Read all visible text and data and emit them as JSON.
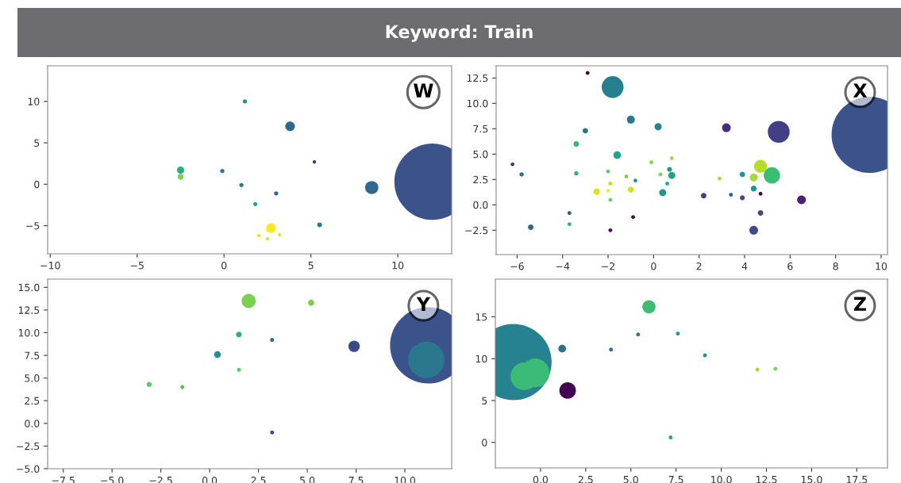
{
  "chart_data": [
    {
      "type": "bubble",
      "title": "Keyword: Train",
      "annotations": [
        "W"
      ],
      "xlim": [
        -10.15,
        13.1
      ],
      "ylim": [
        -8.4,
        14.3
      ],
      "xticks": [
        -10,
        -5,
        0,
        5,
        10
      ],
      "yticks": [
        -5,
        0,
        5,
        10
      ],
      "x": [
        12.0,
        1.2,
        3.8,
        5.2,
        -2.5,
        -2.5,
        -0.1,
        1.0,
        3.0,
        1.8,
        2.7,
        2.0,
        2.5,
        3.2,
        5.5,
        8.5
      ],
      "values": [
        0.3,
        10.0,
        7.0,
        2.7,
        1.7,
        0.9,
        1.6,
        -0.1,
        -1.1,
        -2.4,
        -5.3,
        -6.2,
        -6.6,
        -6.1,
        -4.9,
        -0.4
      ],
      "sizes": [
        1,
        0.003,
        0.016,
        0.002,
        0.009,
        0.006,
        0.003,
        0.003,
        0.003,
        0.003,
        0.016,
        0.002,
        0.002,
        0.002,
        0.004,
        0.03
      ],
      "colors": [
        "#3b528b",
        "#21918c",
        "#31688e",
        "#472d7b",
        "#2ab07f",
        "#7ad151",
        "#2c728e",
        "#2a788e",
        "#30698e",
        "#22a884",
        "#fde725",
        "#e8e419",
        "#dde318",
        "#e2e418",
        "#2a788e",
        "#31688e"
      ]
    },
    {
      "type": "bubble",
      "annotations": [
        "X"
      ],
      "xlim": [
        -6.92,
        10.28
      ],
      "ylim": [
        -4.9,
        13.7
      ],
      "xticks": [
        -6,
        -4,
        -2,
        0,
        2,
        4,
        6,
        8,
        10
      ],
      "yticks": [
        {
          "value": -2.5,
          "label": "−2.5"
        },
        {
          "value": 0,
          "label": "0.0"
        },
        {
          "value": 2.5,
          "label": "2.5"
        },
        {
          "value": 5,
          "label": "5.0"
        },
        {
          "value": 7.5,
          "label": "7.5"
        },
        {
          "value": 10,
          "label": "10.0"
        },
        {
          "value": 12.5,
          "label": "12.5"
        }
      ],
      "x": [
        9.5,
        -2.9,
        -1.8,
        -1.0,
        0.2,
        -3.0,
        -3.4,
        -1.6,
        -6.2,
        -5.8,
        -3.4,
        -2.0,
        -1.9,
        -1.2,
        -0.8,
        -2.0,
        -2.5,
        -1.0,
        -1.9,
        -0.1,
        0.8,
        0.3,
        0.7,
        0.8,
        0.6,
        0.4,
        -0.9,
        -1.9,
        -3.7,
        -3.7,
        -5.4,
        3.2,
        5.5,
        2.2,
        2.9,
        3.4,
        3.9,
        3.9,
        4.7,
        4.4,
        5.2,
        4.4,
        4.7,
        4.7,
        4.4,
        6.5
      ],
      "values": [
        6.9,
        13.0,
        11.6,
        8.4,
        7.7,
        7.3,
        6.0,
        4.9,
        4.0,
        3.0,
        3.1,
        3.3,
        2.1,
        2.8,
        2.4,
        1.4,
        1.3,
        1.5,
        0.5,
        4.2,
        4.6,
        3.0,
        3.5,
        2.9,
        2.1,
        1.2,
        -1.2,
        -2.5,
        -0.8,
        -1.9,
        -2.2,
        7.6,
        7.2,
        0.9,
        2.6,
        1.0,
        3.0,
        0.7,
        3.8,
        2.7,
        2.9,
        1.6,
        1.1,
        -0.8,
        -2.5,
        0.5
      ],
      "sizes": [
        1,
        0.0025,
        0.082,
        0.011,
        0.0086,
        0.0051,
        0.0051,
        0.01,
        0.0025,
        0.0033,
        0.0033,
        0.0025,
        0.0025,
        0.0025,
        0.0025,
        0.0025,
        0.0073,
        0.0062,
        0.0025,
        0.0025,
        0.0025,
        0.0025,
        0.0041,
        0.0086,
        0.0025,
        0.0086,
        0.0025,
        0.0025,
        0.0025,
        0.0025,
        0.0051,
        0.013,
        0.082,
        0.0051,
        0.0025,
        0.0025,
        0.0051,
        0.0041,
        0.029,
        0.011,
        0.046,
        0.0062,
        0.0025,
        0.0051,
        0.013,
        0.013
      ],
      "colors": [
        "#3b528b",
        "#440154",
        "#277f8e",
        "#2a788e",
        "#25858e",
        "#2c728e",
        "#35b779",
        "#20a386",
        "#443983",
        "#2c728e",
        "#29af7f",
        "#5ec962",
        "#bddf26",
        "#7ad151",
        "#21918c",
        "#fde725",
        "#dde318",
        "#d2e21b",
        "#6ccd5a",
        "#86d549",
        "#a5db36",
        "#7ad151",
        "#1f988b",
        "#1fa088",
        "#22a884",
        "#1f988b",
        "#440154",
        "#46085c",
        "#3b528b",
        "#2ab07f",
        "#31688e",
        "#472c7a",
        "#433e85",
        "#433e85",
        "#a0da39",
        "#33638d",
        "#1f988b",
        "#3e4989",
        "#b5de2b",
        "#a5db36",
        "#3dbc74",
        "#1f988b",
        "#440154",
        "#3e4989",
        "#3e4989",
        "#482173"
      ]
    },
    {
      "type": "bubble",
      "annotations": [
        "Y"
      ],
      "xlim": [
        -8.3,
        12.4
      ],
      "ylim": [
        -5.0,
        15.9
      ],
      "xticks": [
        {
          "value": -7.5,
          "label": "−7.5"
        },
        {
          "value": -5,
          "label": "−5.0"
        },
        {
          "value": -2.5,
          "label": "−2.5"
        },
        {
          "value": 0,
          "label": "0.0"
        },
        {
          "value": 2.5,
          "label": "2.5"
        },
        {
          "value": 5,
          "label": "5.0"
        },
        {
          "value": 7.5,
          "label": "7.5"
        },
        {
          "value": 10,
          "label": "10.0"
        }
      ],
      "yticks": [
        {
          "value": -5,
          "label": "−5.0"
        },
        {
          "value": -2.5,
          "label": "−2.5"
        },
        {
          "value": 0,
          "label": "0.0"
        },
        {
          "value": 2.5,
          "label": "2.5"
        },
        {
          "value": 5,
          "label": "5.0"
        },
        {
          "value": 7.5,
          "label": "7.5"
        },
        {
          "value": 10,
          "label": "10.0"
        },
        {
          "value": 12.5,
          "label": "12.5"
        },
        {
          "value": 15,
          "label": "15.0"
        }
      ],
      "x": [
        11.2,
        11.1,
        2.0,
        5.2,
        1.5,
        3.2,
        0.4,
        1.5,
        -3.1,
        -1.4,
        3.2,
        7.4
      ],
      "values": [
        8.6,
        7.0,
        13.5,
        13.3,
        9.8,
        9.2,
        7.6,
        5.9,
        4.3,
        4.0,
        -1.0,
        8.5
      ],
      "sizes": [
        1,
        0.23,
        0.034,
        0.0066,
        0.0055,
        0.0027,
        0.0079,
        0.0027,
        0.0044,
        0.0027,
        0.0027,
        0.022
      ],
      "colors": [
        "#3b528b",
        "#2a788e",
        "#7ad151",
        "#7ad151",
        "#2ab07f",
        "#2c728e",
        "#21918c",
        "#5ec962",
        "#5ec962",
        "#4ac16d",
        "#3e4989",
        "#3e4989"
      ]
    },
    {
      "type": "bubble",
      "annotations": [
        "Z"
      ],
      "xlim": [
        -2.5,
        19.2
      ],
      "ylim": [
        -3.05,
        19.5
      ],
      "xticks": [
        {
          "value": 0,
          "label": "0.0"
        },
        {
          "value": 2.5,
          "label": "2.5"
        },
        {
          "value": 5,
          "label": "5.0"
        },
        {
          "value": 7.5,
          "label": "7.5"
        },
        {
          "value": 10,
          "label": "10.0"
        },
        {
          "value": 12.5,
          "label": "12.5"
        },
        {
          "value": 15,
          "label": "15.0"
        },
        {
          "value": 17.5,
          "label": "17.5"
        }
      ],
      "yticks": [
        0,
        5,
        10,
        15
      ],
      "x": [
        -1.5,
        -0.9,
        -0.3,
        6.0,
        1.2,
        3.9,
        5.4,
        7.6,
        9.1,
        12.0,
        13.0,
        7.2,
        1.5
      ],
      "values": [
        9.6,
        7.9,
        8.3,
        16.2,
        11.2,
        11.1,
        12.9,
        13.0,
        10.4,
        8.7,
        8.8,
        0.6,
        6.2
      ],
      "sizes": [
        1,
        0.131,
        0.142,
        0.03,
        0.0103,
        0.0026,
        0.0026,
        0.0026,
        0.0026,
        0.0026,
        0.0026,
        0.0026,
        0.047
      ],
      "colors": [
        "#26828e",
        "#3bbb75",
        "#3bbb75",
        "#3dbc74",
        "#2c728e",
        "#2c728e",
        "#2a788e",
        "#21918c",
        "#21918c",
        "#a5db36",
        "#7ad151",
        "#22a884",
        "#440154"
      ]
    }
  ]
}
